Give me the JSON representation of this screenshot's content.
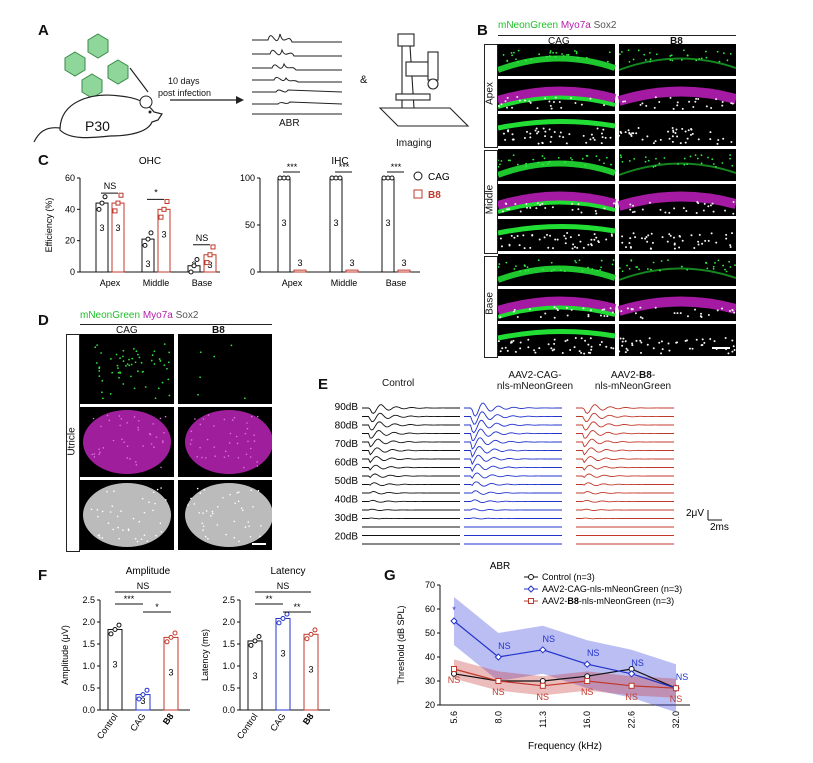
{
  "panels": {
    "A": "A",
    "B": "B",
    "C": "C",
    "D": "D",
    "E": "E",
    "F": "F",
    "G": "G"
  },
  "panelA": {
    "age": "P30",
    "arrow_line1": "10 days",
    "arrow_line2": "post infection",
    "ampersand": "&",
    "abr_caption": "ABR",
    "imaging_caption": "Imaging"
  },
  "panelB": {
    "legend_green": "mNeonGreen",
    "legend_magenta": "Myo7a",
    "legend_gray": "Sox2",
    "col_cag": "CAG",
    "col_b8": "B8",
    "rows": [
      "Apex",
      "Middle",
      "Base"
    ]
  },
  "panelC": {
    "ylabel": "Efficiency (%)",
    "ohc_title": "OHC",
    "ihc_title": "IHC",
    "legend_cag": "CAG",
    "legend_b8": "B8",
    "ohc_yticks": [
      "0",
      "20",
      "40",
      "60"
    ],
    "ihc_yticks": [
      "0",
      "50",
      "100"
    ],
    "categories": [
      "Apex",
      "Middle",
      "Base"
    ],
    "ohc_sig": [
      "NS",
      "*",
      "NS"
    ],
    "ihc_sig": [
      "***",
      "***",
      "***"
    ],
    "n": "3"
  },
  "panelD": {
    "legend_green": "mNeonGreen",
    "legend_magenta": "Myo7a",
    "legend_gray": "Sox2",
    "col_cag": "CAG",
    "col_b8": "B8",
    "row": "Utricle"
  },
  "panelE": {
    "col_control": "Control",
    "col_cag_l1": "AAV2-CAG-",
    "col_cag_l2": "nls-mNeonGreen",
    "col_b8_l1": "AAV2-",
    "col_b8_bold": "B8",
    "col_b8_dash": "-",
    "col_b8_l2": "nls-mNeonGreen",
    "levels": [
      "90dB",
      "80dB",
      "70dB",
      "60dB",
      "50dB",
      "40dB",
      "30dB",
      "20dB"
    ],
    "scale_v": "2μV",
    "scale_t": "2ms"
  },
  "panelF": {
    "amp_title": "Amplitude",
    "lat_title": "Latency",
    "amp_ylabel": "Amplitude (μV)",
    "lat_ylabel": "Latency (ms)",
    "amp_yticks": [
      "0.0",
      "0.5",
      "1.0",
      "1.5",
      "2.0",
      "2.5"
    ],
    "lat_yticks": [
      "0.0",
      "0.5",
      "1.0",
      "1.5",
      "2.0",
      "2.5"
    ],
    "xcats": [
      "Control",
      "CAG",
      "B8"
    ],
    "amp_sig": {
      "top": "NS",
      "left": "***",
      "right": "*"
    },
    "lat_sig": {
      "top": "NS",
      "left": "**",
      "right": "**"
    },
    "n": "3"
  },
  "panelG": {
    "title": "ABR",
    "ylabel": "Threshold (dB SPL)",
    "xlabel": "Frequency (kHz)",
    "yticks": [
      "20",
      "30",
      "40",
      "50",
      "60",
      "70"
    ],
    "xticks": [
      "5.6",
      "8.0",
      "11.3",
      "16.0",
      "22.6",
      "32.0"
    ],
    "legend_control": "Control (n=3)",
    "legend_cag": "AAV2-CAG-nls-mNeonGreen (n=3)",
    "legend_b8_pre": "AAV2-",
    "legend_b8_bold": "B8",
    "legend_b8_post": "-nls-mNeonGreen (n=3)",
    "ns": "NS",
    "star": "*"
  },
  "chart_data": [
    {
      "type": "bar",
      "title": "OHC",
      "ylabel": "Efficiency (%)",
      "categories": [
        "Apex",
        "Middle",
        "Base"
      ],
      "ylim": [
        0,
        60
      ],
      "series": [
        {
          "name": "CAG",
          "values": [
            44,
            21,
            4
          ]
        },
        {
          "name": "B8",
          "values": [
            44,
            40,
            11
          ]
        }
      ]
    },
    {
      "type": "bar",
      "title": "IHC",
      "categories": [
        "Apex",
        "Middle",
        "Base"
      ],
      "ylim": [
        0,
        100
      ],
      "series": [
        {
          "name": "CAG",
          "values": [
            100,
            100,
            100
          ]
        },
        {
          "name": "B8",
          "values": [
            2,
            2,
            2
          ]
        }
      ]
    },
    {
      "type": "bar",
      "title": "Amplitude",
      "ylabel": "Amplitude (μV)",
      "categories": [
        "Control",
        "CAG",
        "B8"
      ],
      "ylim": [
        0,
        2.5
      ],
      "series": [
        {
          "name": "Amplitude",
          "values": [
            1.83,
            0.35,
            1.65
          ]
        }
      ]
    },
    {
      "type": "bar",
      "title": "Latency",
      "ylabel": "Latency (ms)",
      "categories": [
        "Control",
        "CAG",
        "B8"
      ],
      "ylim": [
        0,
        2.5
      ],
      "series": [
        {
          "name": "Latency",
          "values": [
            1.57,
            2.08,
            1.72
          ]
        }
      ]
    },
    {
      "type": "line",
      "title": "ABR",
      "xlabel": "Frequency (kHz)",
      "ylabel": "Threshold (dB SPL)",
      "x": [
        "5.6",
        "8.0",
        "11.3",
        "16.0",
        "22.6",
        "32.0"
      ],
      "ylim": [
        20,
        70
      ],
      "series": [
        {
          "name": "Control (n=3)",
          "values": [
            33,
            30,
            30,
            32,
            35,
            27
          ]
        },
        {
          "name": "AAV2-CAG-nls-mNeonGreen (n=3)",
          "values": [
            55,
            40,
            43,
            37,
            33,
            27
          ]
        },
        {
          "name": "AAV2-B8-nls-mNeonGreen (n=3)",
          "values": [
            35,
            30,
            28,
            30,
            28,
            27
          ]
        }
      ]
    }
  ],
  "colors": {
    "cag": "#2233cc",
    "b8": "#c0392b",
    "black": "#111111",
    "green": "#1fbf2a",
    "magenta": "#b31ea8"
  }
}
